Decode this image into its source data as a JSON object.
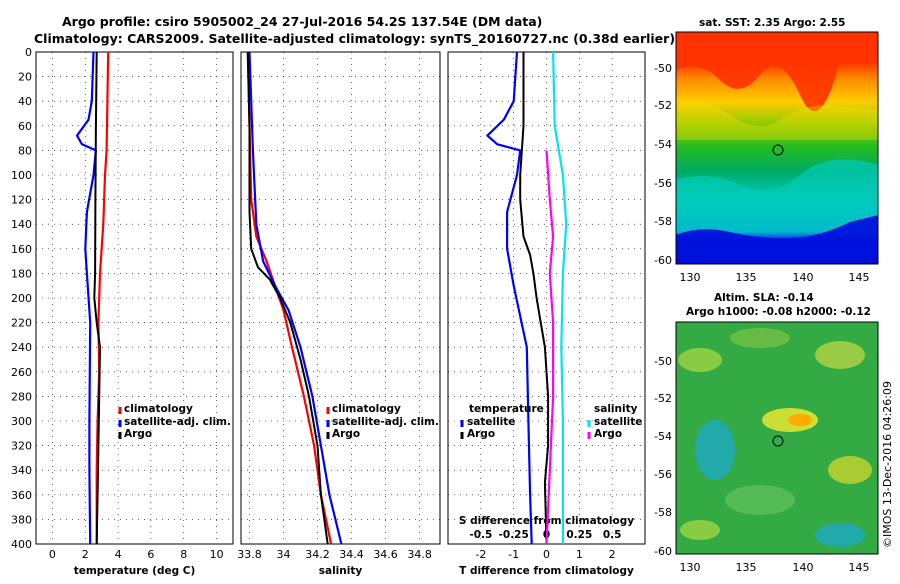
{
  "header": {
    "line1": "Argo profile: csiro 5905002_24 27-Jul-2016 54.2S 137.54E (DM data)",
    "line2": "Climatology: CARS2009. Satellite-adjusted climatology: synTS_20160727.nc (0.38d earlier)"
  },
  "colors": {
    "red": "#ff0000",
    "blue": "#0000ff",
    "black": "#000000",
    "cyan": "#00e5ee",
    "magenta": "#ff00ff"
  },
  "chart_data": [
    {
      "type": "line",
      "name": "temperature",
      "xlabel": "temperature (deg C)",
      "xlim": [
        -1,
        11
      ],
      "ylim": [
        0,
        400
      ],
      "xticks": [
        "0",
        "2",
        "4",
        "6",
        "8",
        "10"
      ],
      "xtickvals": [
        0,
        2,
        4,
        6,
        8,
        10
      ],
      "yticks": [
        "0",
        "20",
        "40",
        "60",
        "80",
        "100",
        "120",
        "140",
        "160",
        "180",
        "200",
        "220",
        "240",
        "260",
        "280",
        "300",
        "320",
        "340",
        "360",
        "380",
        "400"
      ],
      "legend": [
        "climatology",
        "satellite-adj. clim.",
        "Argo"
      ],
      "series": [
        {
          "name": "climatology",
          "color": "red",
          "points": [
            [
              3.4,
              0
            ],
            [
              3.35,
              40
            ],
            [
              3.3,
              80
            ],
            [
              3.2,
              100
            ],
            [
              3.1,
              140
            ],
            [
              2.9,
              180
            ],
            [
              2.8,
              220
            ],
            [
              2.85,
              260
            ],
            [
              2.75,
              300
            ],
            [
              2.7,
              340
            ],
            [
              2.7,
              400
            ]
          ]
        },
        {
          "name": "satellite-adj. clim.",
          "color": "blue",
          "points": [
            [
              2.5,
              0
            ],
            [
              2.4,
              40
            ],
            [
              2.2,
              55
            ],
            [
              1.5,
              68
            ],
            [
              1.8,
              75
            ],
            [
              2.65,
              80
            ],
            [
              2.5,
              100
            ],
            [
              2.1,
              130
            ],
            [
              2.0,
              160
            ],
            [
              2.1,
              180
            ],
            [
              2.3,
              220
            ],
            [
              2.25,
              300
            ],
            [
              2.25,
              340
            ],
            [
              2.3,
              400
            ]
          ]
        },
        {
          "name": "Argo",
          "color": "black",
          "points": [
            [
              2.7,
              0
            ],
            [
              2.65,
              60
            ],
            [
              2.62,
              120
            ],
            [
              2.6,
              180
            ],
            [
              2.55,
              200
            ],
            [
              2.7,
              220
            ],
            [
              2.9,
              240
            ],
            [
              2.85,
              280
            ],
            [
              2.8,
              320
            ],
            [
              2.75,
              360
            ],
            [
              2.7,
              400
            ]
          ]
        }
      ]
    },
    {
      "type": "line",
      "name": "salinity",
      "xlabel": "salinity",
      "xlim": [
        33.75,
        34.92
      ],
      "ylim": [
        0,
        400
      ],
      "xticks": [
        "33.8",
        "34",
        "34.2",
        "34.4",
        "34.6",
        "34.8"
      ],
      "xtickvals": [
        33.8,
        34.0,
        34.2,
        34.4,
        34.6,
        34.8
      ],
      "legend": [
        "climatology",
        "satellite-adj. clim.",
        "Argo"
      ],
      "series": [
        {
          "name": "climatology",
          "color": "red",
          "points": [
            [
              33.79,
              0
            ],
            [
              33.8,
              60
            ],
            [
              33.81,
              120
            ],
            [
              33.84,
              150
            ],
            [
              33.9,
              170
            ],
            [
              33.95,
              190
            ],
            [
              34.0,
              210
            ],
            [
              34.05,
              240
            ],
            [
              34.12,
              280
            ],
            [
              34.18,
              320
            ],
            [
              34.22,
              360
            ],
            [
              34.28,
              400
            ]
          ]
        },
        {
          "name": "satellite-adj. clim.",
          "color": "blue",
          "points": [
            [
              33.8,
              0
            ],
            [
              33.82,
              80
            ],
            [
              33.84,
              140
            ],
            [
              33.88,
              170
            ],
            [
              33.95,
              190
            ],
            [
              34.03,
              210
            ],
            [
              34.1,
              240
            ],
            [
              34.17,
              280
            ],
            [
              34.22,
              320
            ],
            [
              34.27,
              360
            ],
            [
              34.34,
              400
            ]
          ]
        },
        {
          "name": "Argo",
          "color": "black",
          "points": [
            [
              33.79,
              0
            ],
            [
              33.8,
              60
            ],
            [
              33.8,
              130
            ],
            [
              33.81,
              160
            ],
            [
              33.85,
              175
            ],
            [
              33.92,
              185
            ],
            [
              33.98,
              200
            ],
            [
              34.04,
              220
            ],
            [
              34.1,
              250
            ],
            [
              34.15,
              280
            ],
            [
              34.2,
              320
            ],
            [
              34.22,
              360
            ],
            [
              34.26,
              400
            ]
          ]
        }
      ]
    },
    {
      "type": "line",
      "name": "difference",
      "xlabel": "T difference from climatology",
      "xlabel2": "S difference from climatology",
      "xlim": [
        -3,
        3
      ],
      "ylim": [
        0,
        400
      ],
      "xticks": [
        "-2",
        "-1",
        "0",
        "1",
        "2"
      ],
      "xtickvals": [
        -2,
        -1,
        0,
        1,
        2
      ],
      "xticks2": [
        "-0.5",
        "-0.25",
        "0",
        "0.25",
        "0.5"
      ],
      "xtickvals2": [
        -2,
        -1,
        0,
        1,
        2
      ],
      "legend_t_title": "temperature",
      "legend_s_title": "salinity",
      "legend_t": [
        "satellite",
        "Argo"
      ],
      "legend_s": [
        "satellite",
        "Argo"
      ],
      "series": [
        {
          "name": "T satellite",
          "color": "blue",
          "points": [
            [
              -0.9,
              0
            ],
            [
              -1.0,
              40
            ],
            [
              -1.3,
              55
            ],
            [
              -1.8,
              68
            ],
            [
              -1.5,
              75
            ],
            [
              -0.8,
              80
            ],
            [
              -0.9,
              100
            ],
            [
              -1.2,
              130
            ],
            [
              -1.2,
              160
            ],
            [
              -1.0,
              190
            ],
            [
              -0.6,
              240
            ],
            [
              -0.55,
              300
            ],
            [
              -0.5,
              360
            ],
            [
              -0.45,
              400
            ]
          ]
        },
        {
          "name": "T Argo",
          "color": "black",
          "points": [
            [
              -0.7,
              0
            ],
            [
              -0.7,
              60
            ],
            [
              -0.8,
              100
            ],
            [
              -0.8,
              120
            ],
            [
              -0.7,
              150
            ],
            [
              -0.5,
              165
            ],
            [
              -0.4,
              180
            ],
            [
              -0.3,
              200
            ],
            [
              -0.05,
              240
            ],
            [
              0.05,
              280
            ],
            [
              0.05,
              320
            ],
            [
              -0.05,
              350
            ],
            [
              0.0,
              400
            ]
          ]
        },
        {
          "name": "S satellite",
          "color": "cyan",
          "points": [
            [
              0.2,
              0
            ],
            [
              0.25,
              60
            ],
            [
              0.5,
              100
            ],
            [
              0.6,
              140
            ],
            [
              0.5,
              180
            ],
            [
              0.45,
              240
            ],
            [
              0.5,
              300
            ],
            [
              0.5,
              360
            ],
            [
              0.5,
              400
            ]
          ]
        },
        {
          "name": "S Argo",
          "color": "magenta",
          "points": [
            [
              0.0,
              80
            ],
            [
              0.1,
              120
            ],
            [
              0.2,
              150
            ],
            [
              0.1,
              180
            ],
            [
              0.2,
              220
            ],
            [
              0.2,
              280
            ],
            [
              0.1,
              340
            ],
            [
              0.0,
              400
            ]
          ]
        }
      ]
    }
  ],
  "maps": {
    "sst": {
      "title": "sat. SST: 2.35 Argo: 2.55"
    },
    "sla": {
      "title1": "Altim. SLA: -0.14",
      "title2": "Argo h1000: -0.08 h2000: -0.12"
    },
    "lat_ticks": [
      "-50",
      "-52",
      "-54",
      "-56",
      "-58",
      "-60"
    ],
    "lon_ticks": [
      "130",
      "135",
      "140",
      "145"
    ]
  },
  "footer": {
    "credit": "©IMOS 13-Dec-2016 04:26:09"
  }
}
